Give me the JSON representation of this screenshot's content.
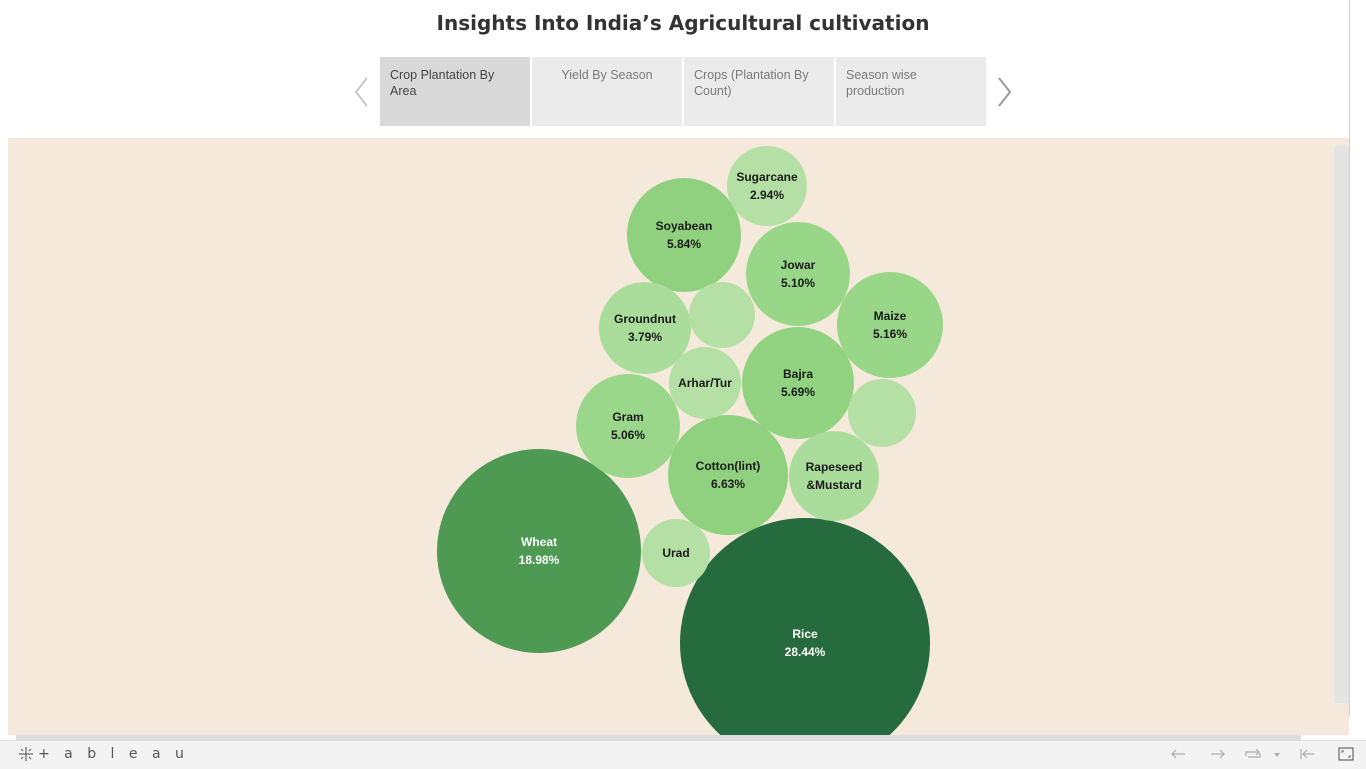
{
  "story": {
    "title": "Insights Into India’s Agricultural cultivation",
    "points": [
      {
        "label": "Crop Plantation By Area",
        "active": true
      },
      {
        "label": "Yield By Season",
        "active": false
      },
      {
        "label": "Crops (Plantation By Count)",
        "active": false
      },
      {
        "label": "Season wise production",
        "active": false
      }
    ]
  },
  "footer": {
    "logo_text": "+ a b l e a u"
  },
  "chart_data": {
    "type": "bubble",
    "title": "",
    "colors": {
      "darkest": "#256b3e",
      "dark": "#4e9a53",
      "mid": "#8fd17f",
      "light": "#a3da90",
      "lightest": "#b4e0a6",
      "background": "#f4e9da"
    },
    "bubbles": [
      {
        "name": "Rice",
        "value_label": "28.44%",
        "value": 28.44,
        "color": "#256b3e",
        "text_color": "#ffffff"
      },
      {
        "name": "Wheat",
        "value_label": "18.98%",
        "value": 18.98,
        "color": "#4e9a53",
        "text_color": "#ffffff"
      },
      {
        "name": "Cotton(lint)",
        "value_label": "6.63%",
        "value": 6.63,
        "color": "#8fd17f",
        "text_color": "#1a1a1a"
      },
      {
        "name": "Soyabean",
        "value_label": "5.84%",
        "value": 5.84,
        "color": "#8fd17f",
        "text_color": "#1a1a1a"
      },
      {
        "name": "Bajra",
        "value_label": "5.69%",
        "value": 5.69,
        "color": "#92d382",
        "text_color": "#1a1a1a"
      },
      {
        "name": "Maize",
        "value_label": "5.16%",
        "value": 5.16,
        "color": "#98d688",
        "text_color": "#1a1a1a"
      },
      {
        "name": "Jowar",
        "value_label": "5.10%",
        "value": 5.1,
        "color": "#98d688",
        "text_color": "#1a1a1a"
      },
      {
        "name": "Gram",
        "value_label": "5.06%",
        "value": 5.06,
        "color": "#9ad78a",
        "text_color": "#1a1a1a"
      },
      {
        "name": "Groundnut",
        "value_label": "3.79%",
        "value": 3.79,
        "color": "#aadd9b",
        "text_color": "#1a1a1a"
      },
      {
        "name": "Rapeseed &Mustard",
        "line1": "Rapeseed",
        "line2": "&Mustard",
        "value_label": "",
        "color": "#aadd9b",
        "text_color": "#1a1a1a"
      },
      {
        "name": "Sugarcane",
        "value_label": "2.94%",
        "value": 2.94,
        "color": "#b4e0a6",
        "text_color": "#1a1a1a"
      },
      {
        "name": "Arhar/Tur",
        "value_label": "",
        "color": "#b4e0a6",
        "text_color": "#1a1a1a"
      },
      {
        "name": "Urad",
        "value_label": "",
        "color": "#b4e0a6",
        "text_color": "#1a1a1a"
      },
      {
        "name": "",
        "value_label": "",
        "color": "#b4e0a6",
        "text_color": "#1a1a1a"
      },
      {
        "name": "",
        "value_label": "",
        "color": "#b4e0a6",
        "text_color": "#1a1a1a"
      }
    ]
  }
}
